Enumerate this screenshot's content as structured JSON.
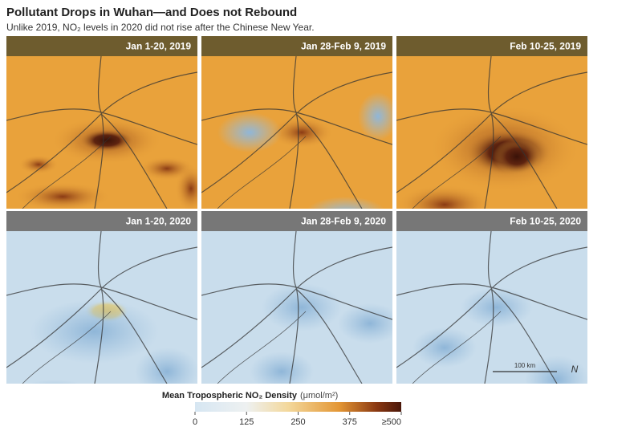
{
  "header": {
    "title": "Pollutant Drops in Wuhan—and Does not Rebound",
    "subtitle": "Unlike 2019, NO₂ levels in 2020 did not rise after the Chinese New Year."
  },
  "panels": [
    {
      "label": "Jan 1-20, 2019"
    },
    {
      "label": "Jan 28-Feb 9, 2019"
    },
    {
      "label": "Feb 10-25, 2019"
    },
    {
      "label": "Jan 1-20, 2020"
    },
    {
      "label": "Jan 28-Feb 9, 2020"
    },
    {
      "label": "Feb 10-25, 2020"
    }
  ],
  "scale_bar": "100 km",
  "north": "N",
  "colorbar": {
    "title": "Mean Tropospheric NO₂ Density",
    "unit": "(μmol/m²)",
    "lim": [
      0,
      500
    ],
    "ticks": [
      0,
      125,
      250,
      375,
      {
        "value": 500,
        "label": "≥500"
      }
    ]
  }
}
